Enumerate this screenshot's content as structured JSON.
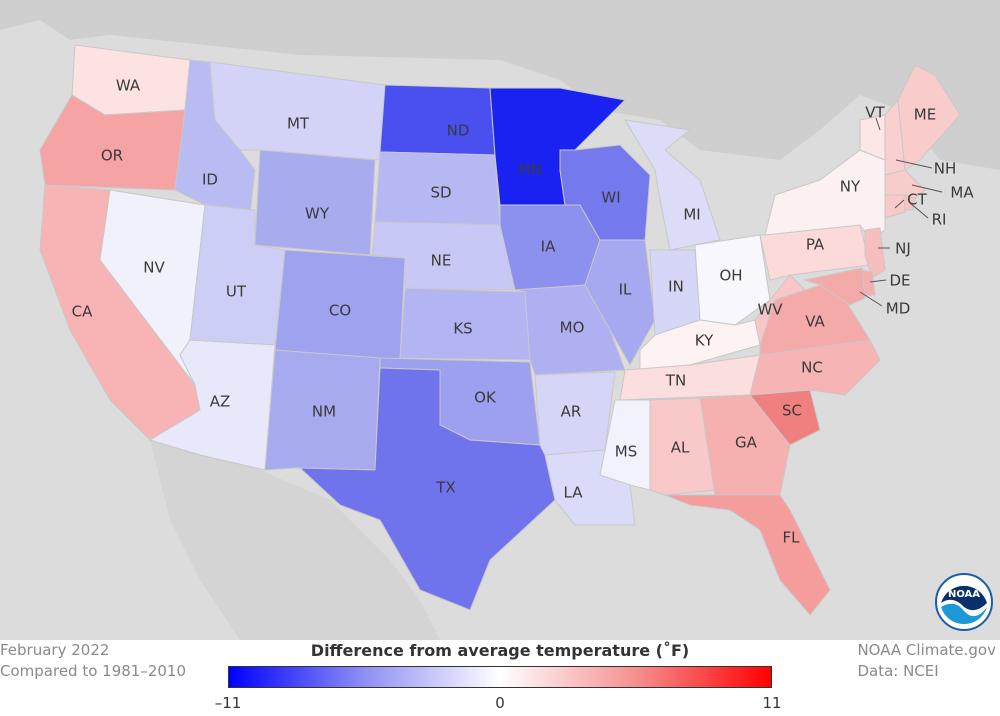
{
  "map": {
    "states": [
      {
        "abbr": "WA",
        "color": "#fde2e2"
      },
      {
        "abbr": "OR",
        "color": "#f6a3a3"
      },
      {
        "abbr": "CA",
        "color": "#f8b4b4"
      },
      {
        "abbr": "ID",
        "color": "#b9bcf2"
      },
      {
        "abbr": "NV",
        "color": "#f1f1fc"
      },
      {
        "abbr": "MT",
        "color": "#d2d3f7"
      },
      {
        "abbr": "WY",
        "color": "#a9abef"
      },
      {
        "abbr": "UT",
        "color": "#ccceF6"
      },
      {
        "abbr": "AZ",
        "color": "#e8e8fb"
      },
      {
        "abbr": "CO",
        "color": "#9fa2ee"
      },
      {
        "abbr": "NM",
        "color": "#a8aaef"
      },
      {
        "abbr": "ND",
        "color": "#4a4ff0"
      },
      {
        "abbr": "SD",
        "color": "#b6b8f3"
      },
      {
        "abbr": "NE",
        "color": "#c7c8f5"
      },
      {
        "abbr": "KS",
        "color": "#b3b5f3"
      },
      {
        "abbr": "OK",
        "color": "#9da0ef"
      },
      {
        "abbr": "TX",
        "color": "#6f73ec"
      },
      {
        "abbr": "MN",
        "color": "#1a22f2"
      },
      {
        "abbr": "IA",
        "color": "#8c90ef"
      },
      {
        "abbr": "MO",
        "color": "#aeb0f2"
      },
      {
        "abbr": "AR",
        "color": "#d4d5f7"
      },
      {
        "abbr": "LA",
        "color": "#dadbf8"
      },
      {
        "abbr": "WI",
        "color": "#7479ee"
      },
      {
        "abbr": "IL",
        "color": "#a6a8f0"
      },
      {
        "abbr": "MI",
        "color": "#dcdcf8"
      },
      {
        "abbr": "IN",
        "color": "#d6d7f7"
      },
      {
        "abbr": "OH",
        "color": "#f7f7fd"
      },
      {
        "abbr": "KY",
        "color": "#fdf3f3"
      },
      {
        "abbr": "TN",
        "color": "#fbdede"
      },
      {
        "abbr": "MS",
        "color": "#f2f2fc"
      },
      {
        "abbr": "AL",
        "color": "#f9c9c9"
      },
      {
        "abbr": "GA",
        "color": "#f6b0b0"
      },
      {
        "abbr": "FL",
        "color": "#f59c9c"
      },
      {
        "abbr": "SC",
        "color": "#f08080"
      },
      {
        "abbr": "NC",
        "color": "#f6b4b4"
      },
      {
        "abbr": "VA",
        "color": "#f5aaaa"
      },
      {
        "abbr": "WV",
        "color": "#f8c6c6"
      },
      {
        "abbr": "PA",
        "color": "#fcdada"
      },
      {
        "abbr": "NY",
        "color": "#fdf0f0"
      },
      {
        "abbr": "VT",
        "color": "#fce6e6"
      },
      {
        "abbr": "ME",
        "color": "#f9cccc"
      },
      {
        "abbr": "NH",
        "color": "#facfcf"
      },
      {
        "abbr": "MA",
        "color": "#f9cccc"
      },
      {
        "abbr": "RI",
        "color": "#f8c3c3"
      },
      {
        "abbr": "CT",
        "color": "#f9c8c8"
      },
      {
        "abbr": "NJ",
        "color": "#f8bdbd"
      },
      {
        "abbr": "DE",
        "color": "#f6afaf"
      },
      {
        "abbr": "MD",
        "color": "#f5aaaa"
      }
    ]
  },
  "footer": {
    "left_line1": "February 2022",
    "left_line2": "Compared to 1981–2010",
    "right_line1": "NOAA Climate.gov",
    "right_line2": "Data: NCEI"
  },
  "legend": {
    "title": "Difference from average temperature (˚F)",
    "tick_min": "–11",
    "tick_mid": "0",
    "tick_max": "11",
    "colors": {
      "min": "#0000ff",
      "mid": "#ffffff",
      "max": "#ff0000"
    }
  },
  "logo": {
    "text": "NOAA"
  }
}
